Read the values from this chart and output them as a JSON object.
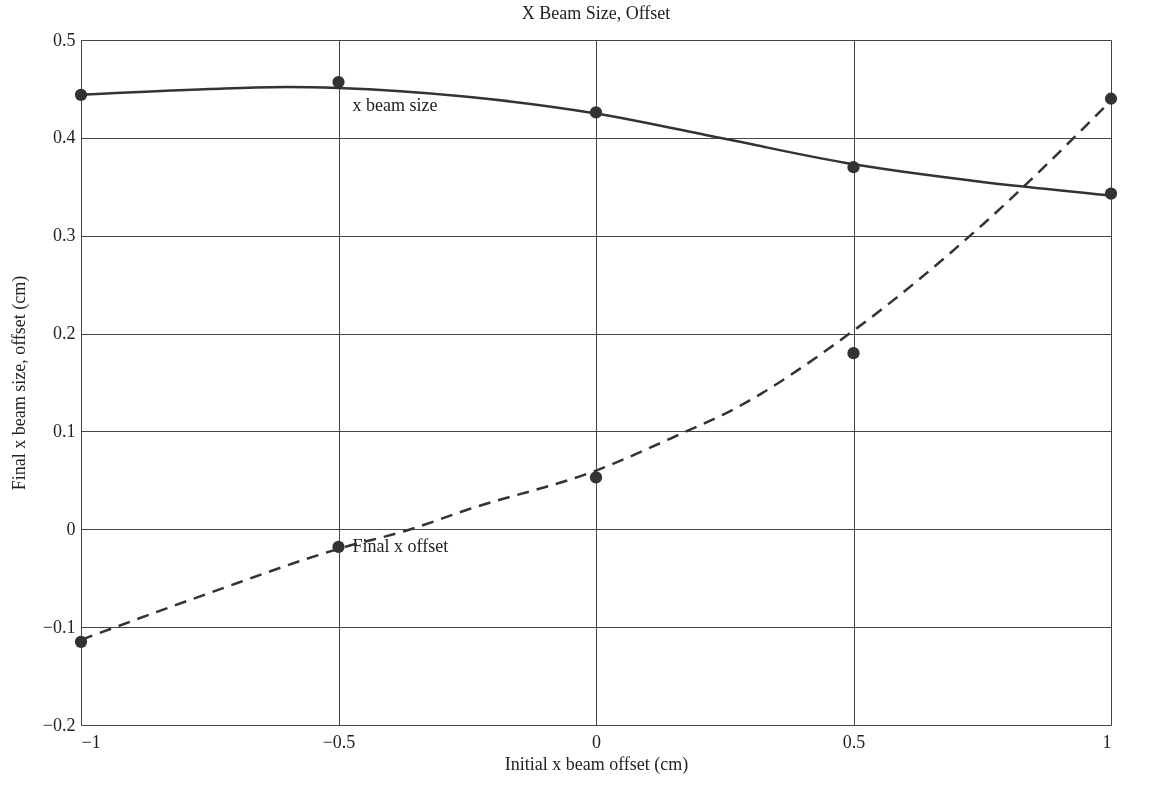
{
  "chart_data": {
    "type": "scatter",
    "title": "X Beam Size, Offset",
    "xlabel": "Initial x beam offset (cm)",
    "ylabel": "Final x beam size, offset (cm)",
    "xlim": [
      -1,
      1
    ],
    "xticks": [
      -1,
      -0.5,
      0,
      0.5,
      1
    ],
    "ylim": [
      -0.2,
      0.5
    ],
    "yticks": [
      -0.2,
      -0.1,
      0,
      0.1,
      0.2,
      0.3,
      0.4,
      0.5
    ],
    "grid": true,
    "marker": "circle",
    "series": [
      {
        "color": "#333333",
        "x": [
          -1,
          -0.5,
          0,
          0.5,
          1
        ],
        "values": [
          0.444,
          0.457,
          0.426,
          0.37,
          0.343
        ]
      },
      {
        "color": "#333333",
        "x": [
          -1,
          -0.5,
          0,
          0.5,
          1
        ],
        "values": [
          -0.115,
          -0.018,
          0.053,
          0.18,
          0.44
        ]
      },
      {
        "type": "line",
        "color": "#333333",
        "line_style": "solid",
        "marker": "none",
        "x": [
          -1,
          -0.75,
          -0.6,
          -0.5,
          -0.25,
          0,
          0.25,
          0.5,
          0.75,
          1
        ],
        "values": [
          0.444,
          0.45,
          0.452,
          0.451,
          0.442,
          0.425,
          0.399,
          0.373,
          0.355,
          0.341
        ]
      },
      {
        "type": "line",
        "color": "#333333",
        "line_style": "dashed",
        "marker": "none",
        "x": [
          -1,
          -0.75,
          -0.5,
          -0.36,
          -0.25,
          0,
          0.175,
          0.25,
          0.5,
          0.75,
          1
        ],
        "values": [
          -0.113,
          -0.065,
          -0.02,
          0,
          0.02,
          0.06,
          0.1,
          0.118,
          0.203,
          0.311,
          0.438
        ]
      }
    ],
    "annotations": [
      {
        "text": "x beam size",
        "x": -0.5,
        "y": 0.457
      },
      {
        "text": "Final x offset",
        "x": -0.5,
        "y": -0.018
      }
    ]
  }
}
